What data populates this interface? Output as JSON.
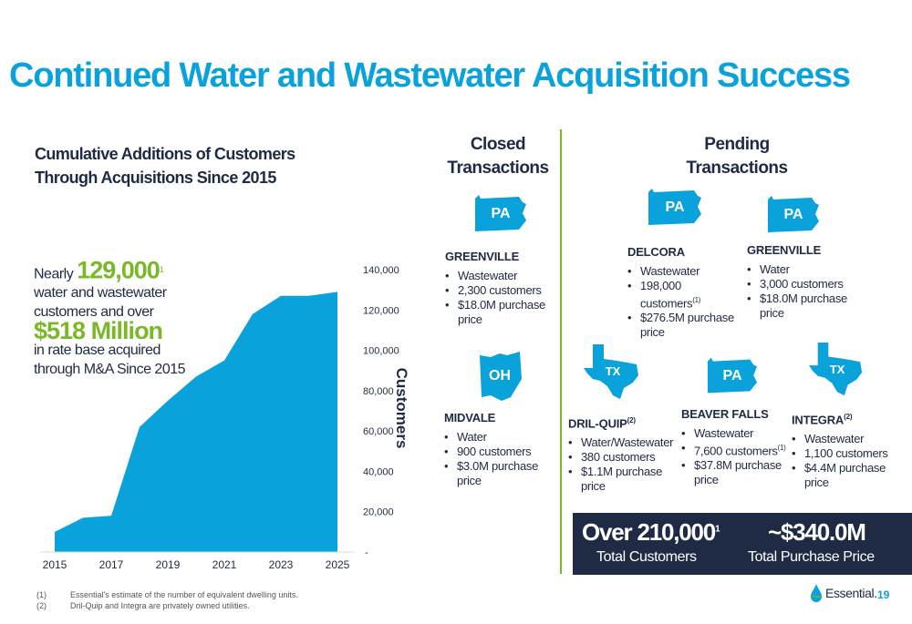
{
  "title": "Continued Water and  Wastewater Acquisition Success",
  "chart_heading": [
    "Cumulative Additions of Customers",
    "Through Acquisitions Since 2015"
  ],
  "callout": {
    "nearly": "Nearly",
    "customers_value": "129,000",
    "customers_sup": "1",
    "line2": "water and wastewater customers and over",
    "rate_base_value": "$518 Million",
    "line3": "in rate base acquired through M&A Since 2015"
  },
  "chart_data": {
    "type": "area",
    "x": [
      2015,
      2016,
      2017,
      2018,
      2019,
      2020,
      2021,
      2022,
      2023,
      2024,
      2025
    ],
    "values": [
      10000,
      17000,
      18000,
      62000,
      75000,
      87000,
      95000,
      118000,
      127000,
      127000,
      129000
    ],
    "x_tick_labels": [
      "2015",
      "2017",
      "2019",
      "2021",
      "2023",
      "2025"
    ],
    "y_tick_labels": [
      "-",
      "20,000",
      "40,000",
      "60,000",
      "80,000",
      "100,000",
      "120,000",
      "140,000"
    ],
    "ylabel": "Customers",
    "ylim": [
      0,
      140000
    ],
    "color": "#0aa2db",
    "grid": false
  },
  "closed_heading": [
    "Closed",
    "Transactions"
  ],
  "pending_heading": [
    "Pending",
    "Transactions"
  ],
  "deals": {
    "greenville_closed": {
      "state": "PA",
      "name": "GREENVILLE",
      "items": [
        "Wastewater",
        "2,300 customers",
        "$18.0M purchase price"
      ]
    },
    "midvale": {
      "state": "OH",
      "name": "MIDVALE",
      "items": [
        "Water",
        "900 customers",
        "$3.0M purchase price"
      ]
    },
    "delcora": {
      "state": "PA",
      "name": "DELCORA",
      "items": [
        "Wastewater",
        "198,000 customers",
        "$276.5M purchase price"
      ],
      "item_sup": "(1)"
    },
    "greenville_pending": {
      "state": "PA",
      "name": "GREENVILLE",
      "items": [
        "Water",
        "3,000 customers",
        "$18.0M purchase price"
      ]
    },
    "drilquip": {
      "state": "TX",
      "name": "DRIL-QUIP",
      "name_sup": "(2)",
      "items": [
        "Water/Wastewater",
        "380 customers",
        "$1.1M purchase price"
      ]
    },
    "beaver_falls": {
      "state": "PA",
      "name": "BEAVER FALLS",
      "items": [
        "Wastewater",
        "7,600 customers",
        "$37.8M purchase price"
      ],
      "item_sup": "(1)"
    },
    "integra": {
      "state": "TX",
      "name": "INTEGRA",
      "name_sup": "(2)",
      "items": [
        "Wastewater",
        "1,100 customers",
        "$4.4M purchase price"
      ]
    }
  },
  "summary": {
    "customers_value": "Over 210,000",
    "customers_sup": "1",
    "customers_label": "Total Customers",
    "price_value": "~$340.0M",
    "price_label": "Total Purchase Price"
  },
  "footnotes": [
    {
      "mark": "(1)",
      "text": "Essential's estimate of the number of equivalent dwelling units."
    },
    {
      "mark": "(2)",
      "text": "Dril-Quip and Integra are privately owned utilities."
    }
  ],
  "logo_text": "Essential.",
  "page_number": "19",
  "colors": {
    "accent_blue": "#0aa2db",
    "accent_green": "#7ab829",
    "navy": "#1f2a44"
  }
}
